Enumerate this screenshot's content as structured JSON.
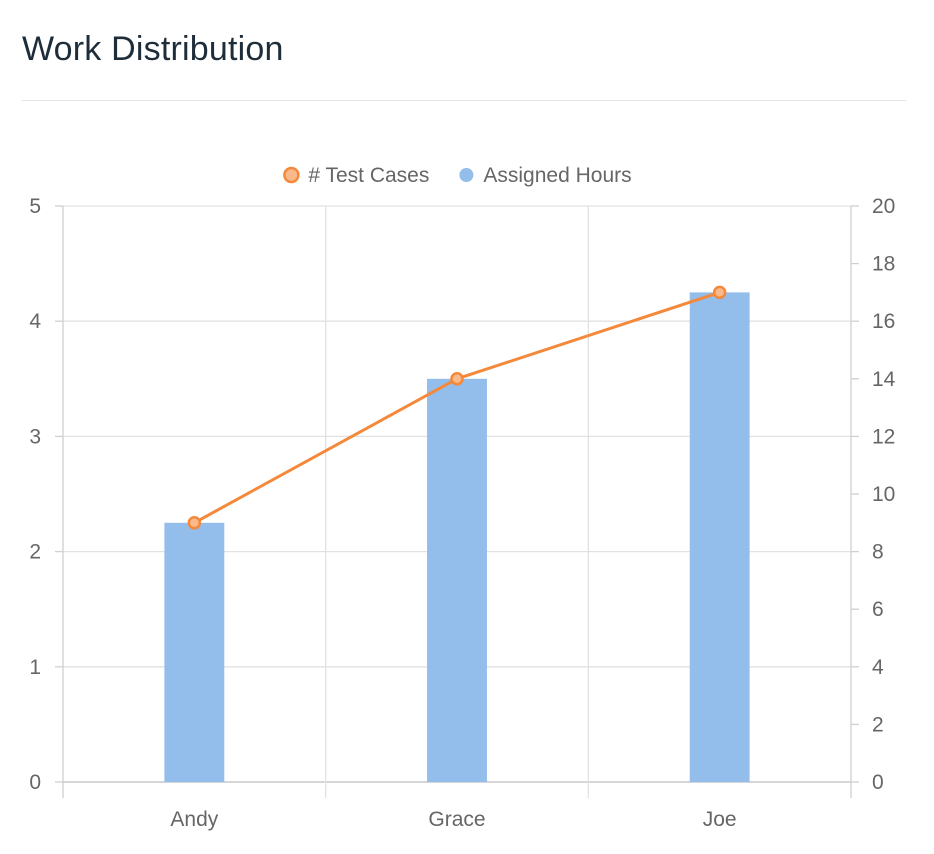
{
  "page": {
    "title": "Work Distribution"
  },
  "chart_data": {
    "type": "bar",
    "categories": [
      "Andy",
      "Grace",
      "Joe"
    ],
    "series": [
      {
        "name": "Assigned Hours",
        "type": "bar",
        "axis": "left",
        "color": "#93bdeb",
        "values": [
          2.25,
          3.5,
          4.25
        ]
      },
      {
        "name": "# Test Cases",
        "type": "line",
        "axis": "right",
        "color": "#f5893b",
        "values": [
          9,
          14,
          17
        ]
      }
    ],
    "legend_order": [
      "# Test Cases",
      "Assigned Hours"
    ],
    "legend_position": "top",
    "y_left": {
      "ylim": [
        0,
        5
      ],
      "ticks": [
        "0",
        "1",
        "2",
        "3",
        "4",
        "5"
      ]
    },
    "y_right": {
      "ylim": [
        0,
        20
      ],
      "ticks": [
        "0",
        "2",
        "4",
        "6",
        "8",
        "10",
        "12",
        "14",
        "16",
        "18",
        "20"
      ]
    },
    "grid": true
  }
}
